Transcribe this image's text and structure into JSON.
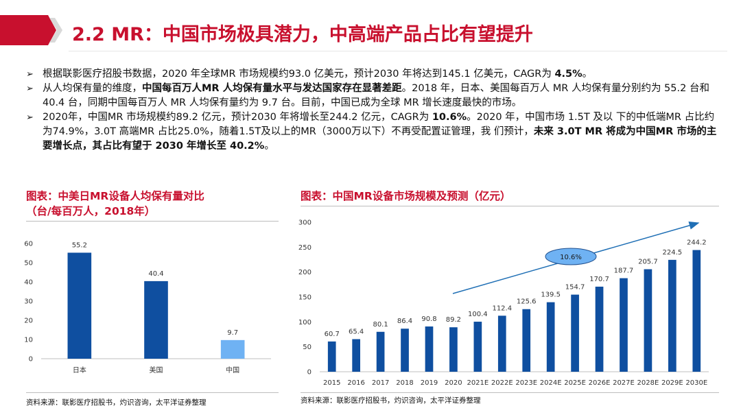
{
  "header": {
    "title": "2.2 MR：中国市场极具潜力，中高端产品占比有望提升",
    "accent_color": "#c8102e"
  },
  "bullets": [
    {
      "segments": [
        {
          "text": "根据联影医疗招股书数据，2020 年全球MR 市场规模约93.0 亿美元，预计2030 年将达到145.1 亿美元，CAGR为 ",
          "bold": false
        },
        {
          "text": "4.5%",
          "bold": true
        },
        {
          "text": "。",
          "bold": false
        }
      ]
    },
    {
      "segments": [
        {
          "text": "从人均保有量的维度，",
          "bold": false
        },
        {
          "text": "中国每百万人MR 人均保有量水平与发达国家存在显著差距",
          "bold": true
        },
        {
          "text": "。2018 年，日本、美国每百万人 MR 人均保有量分别约为 55.2 台和 40.4 台，同期中国每百万人 MR 人均保有量约为 9.7 台。目前，中国已成为全球 MR 增长速度最快的市场。",
          "bold": false
        }
      ]
    },
    {
      "segments": [
        {
          "text": "2020年，中国MR 市场规模约89.2 亿元，预计2030 年将增长至244.2 亿元，CAGR为 ",
          "bold": false
        },
        {
          "text": "10.6%",
          "bold": true
        },
        {
          "text": "。2020 年，中国市场 1.5T 及以 下的中低端MR 占比约为74.9%，3.0T 高端MR 占比25.0%，随着1.5T及以上的MR（3000万以下）不再受配置证管理，我 们预计，",
          "bold": false
        },
        {
          "text": "未来 3.0T MR 将成为中国MR 市场的主要增长点，其占比有望于 2030 年增长至 40.2%",
          "bold": true
        },
        {
          "text": "。",
          "bold": false
        }
      ]
    }
  ],
  "left_panel": {
    "title_line1": "图表：中美日MR设备人均保有量对比",
    "title_line2": "（台/每百万人，2018年）",
    "source": "资料来源：联影医疗招股书，灼识咨询，太平洋证券整理"
  },
  "right_panel": {
    "title": "图表：中国MR设备市场规模及预测（亿元）",
    "source": "资料来源：联影医疗招股书，灼识咨询，太平洋证券整理"
  },
  "chart_data": [
    {
      "type": "bar",
      "title": "图表：中美日MR设备人均保有量对比（台/每百万人，2018年）",
      "categories": [
        "日本",
        "美国",
        "中国"
      ],
      "values": [
        55.2,
        40.4,
        9.7
      ],
      "value_labels": [
        "55.2",
        "40.4",
        "9.7"
      ],
      "yticks": [
        "0",
        "10",
        "20",
        "30",
        "40",
        "50",
        "60"
      ],
      "ylim": [
        0,
        60
      ],
      "colors": [
        "#0f4fa0",
        "#0f4fa0",
        "#6fb2f3"
      ],
      "xlabel": "",
      "ylabel": ""
    },
    {
      "type": "bar",
      "title": "图表：中国MR设备市场规模及预测（亿元）",
      "categories": [
        "2015",
        "2016",
        "2017",
        "2018",
        "2019",
        "2020",
        "2021E",
        "2022E",
        "2023E",
        "2024E",
        "2025E",
        "2026E",
        "2027E",
        "2028E",
        "2029E",
        "2030E"
      ],
      "values": [
        60.7,
        65.4,
        80.1,
        86.4,
        90.8,
        89.2,
        100.4,
        112.4,
        125.6,
        139.5,
        154.7,
        170.7,
        187.7,
        205.7,
        224.5,
        244.2
      ],
      "value_labels": [
        "60.7",
        "65.4",
        "80.1",
        "86.4",
        "90.8",
        "89.2",
        "100.4",
        "112.4",
        "125.6",
        "139.5",
        "154.7",
        "170.7",
        "187.7",
        "205.7",
        "224.5",
        "244.2"
      ],
      "yticks": [
        "0",
        "50",
        "100",
        "150",
        "200",
        "250",
        "300"
      ],
      "ylim": [
        0,
        300
      ],
      "color": "#0f4fa0",
      "annotation": "10.6%",
      "annotation_color": "#6fb2f3",
      "trend_arrow_color": "#1f6fb5",
      "xlabel": "",
      "ylabel": ""
    }
  ]
}
